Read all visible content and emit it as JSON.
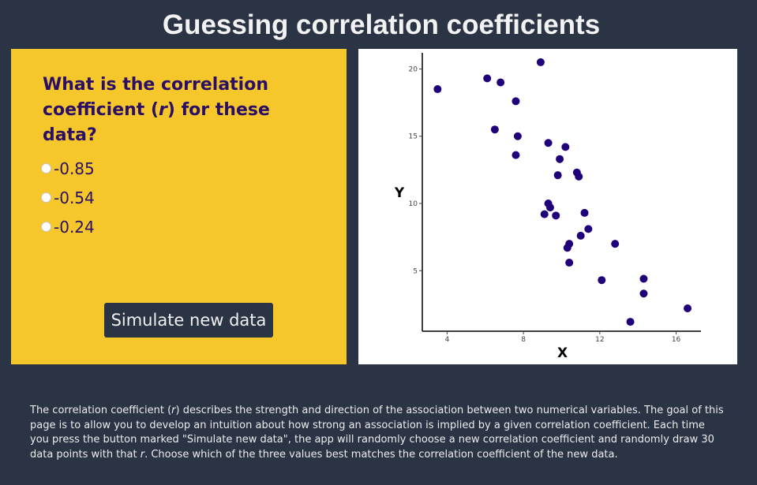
{
  "header": {
    "title": "Guessing correlation coefficients"
  },
  "quiz": {
    "question": "What is the correlation coefficient (r) for these data?",
    "options": [
      "-0.85",
      "-0.54",
      "-0.24"
    ],
    "simulate_label": "Simulate new data"
  },
  "chart_data": {
    "type": "scatter",
    "xlabel": "X",
    "ylabel": "Y",
    "xlim": [
      2.7,
      17.3
    ],
    "ylim": [
      0.5,
      21.2
    ],
    "xticks": [
      4,
      8,
      12,
      16
    ],
    "yticks": [
      5,
      10,
      15,
      20
    ],
    "grid": false,
    "point_color": "#20007a",
    "points": [
      {
        "x": 3.5,
        "y": 18.5
      },
      {
        "x": 6.1,
        "y": 19.3
      },
      {
        "x": 6.8,
        "y": 19.0
      },
      {
        "x": 8.9,
        "y": 20.5
      },
      {
        "x": 7.6,
        "y": 17.6
      },
      {
        "x": 6.5,
        "y": 15.5
      },
      {
        "x": 7.7,
        "y": 15.0
      },
      {
        "x": 7.6,
        "y": 13.6
      },
      {
        "x": 9.3,
        "y": 14.5
      },
      {
        "x": 10.2,
        "y": 14.2
      },
      {
        "x": 9.9,
        "y": 13.3
      },
      {
        "x": 9.8,
        "y": 12.1
      },
      {
        "x": 10.8,
        "y": 12.3
      },
      {
        "x": 10.9,
        "y": 12.0
      },
      {
        "x": 9.3,
        "y": 10.0
      },
      {
        "x": 9.4,
        "y": 9.7
      },
      {
        "x": 9.1,
        "y": 9.2
      },
      {
        "x": 9.7,
        "y": 9.1
      },
      {
        "x": 11.2,
        "y": 9.3
      },
      {
        "x": 11.4,
        "y": 8.1
      },
      {
        "x": 11.0,
        "y": 7.6
      },
      {
        "x": 10.4,
        "y": 7.0
      },
      {
        "x": 10.3,
        "y": 6.7
      },
      {
        "x": 12.8,
        "y": 7.0
      },
      {
        "x": 10.4,
        "y": 5.6
      },
      {
        "x": 12.1,
        "y": 4.3
      },
      {
        "x": 14.3,
        "y": 4.4
      },
      {
        "x": 14.3,
        "y": 3.3
      },
      {
        "x": 16.6,
        "y": 2.2
      },
      {
        "x": 13.6,
        "y": 1.2
      }
    ]
  },
  "footer": {
    "description": "The correlation coefficient (r) describes the strength and direction of the association between two numerical variables. The goal of this page is to allow you to develop an intuition about how strong an association is implied by a given correlation coefficient. Each time you press the button marked \"Simulate new data\", the app will randomly choose a new correlation coefficient and randomly draw 30 data points with that r. Choose which of the three values best matches the correlation coefficient of the new data."
  }
}
